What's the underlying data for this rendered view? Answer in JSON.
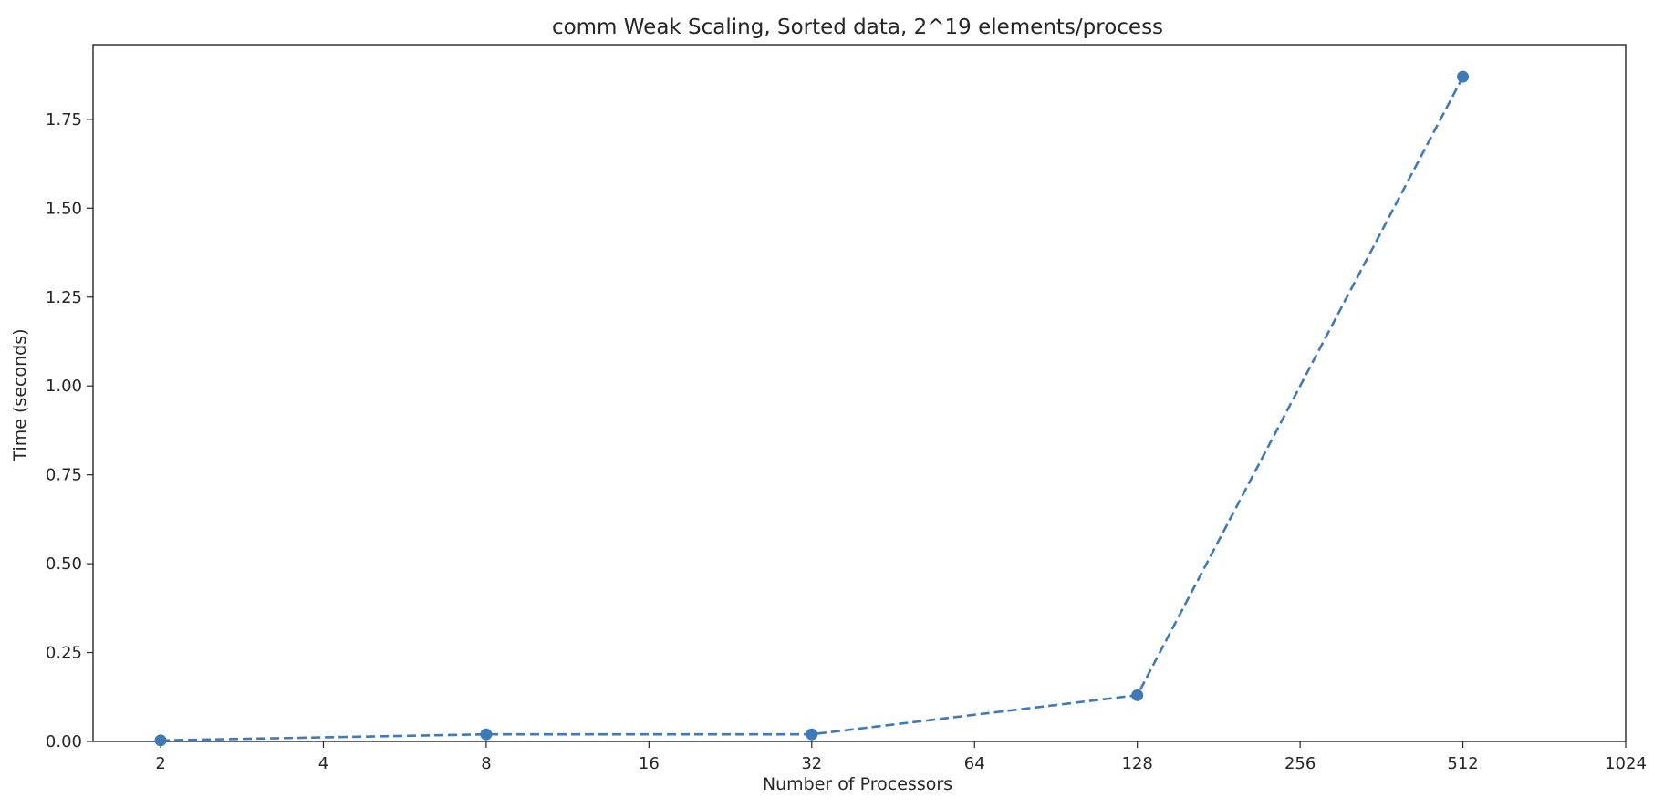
{
  "chart_data": {
    "type": "line",
    "title": "comm Weak Scaling, Sorted data, 2^19 elements/process",
    "xlabel": "Number of Processors",
    "ylabel": "Time (seconds)",
    "x_scale": "log2",
    "xlim": [
      1.5,
      1024
    ],
    "ylim": [
      0,
      1.96
    ],
    "x_ticks": [
      2,
      4,
      8,
      16,
      32,
      64,
      128,
      256,
      512,
      1024
    ],
    "x_tick_labels": [
      "2",
      "4",
      "8",
      "16",
      "32",
      "64",
      "128",
      "256",
      "512",
      "1024"
    ],
    "y_ticks": [
      0,
      0.25,
      0.5,
      0.75,
      1.0,
      1.25,
      1.5,
      1.75
    ],
    "y_tick_labels": [
      "0.00",
      "0.25",
      "0.50",
      "0.75",
      "1.00",
      "1.25",
      "1.50",
      "1.75"
    ],
    "grid": false,
    "series": [
      {
        "line_style": "dashed",
        "marker": "circle",
        "color": "#3e7ab8",
        "x": [
          2,
          8,
          32,
          128,
          512
        ],
        "y": [
          0.003,
          0.02,
          0.02,
          0.13,
          1.87
        ]
      }
    ]
  }
}
